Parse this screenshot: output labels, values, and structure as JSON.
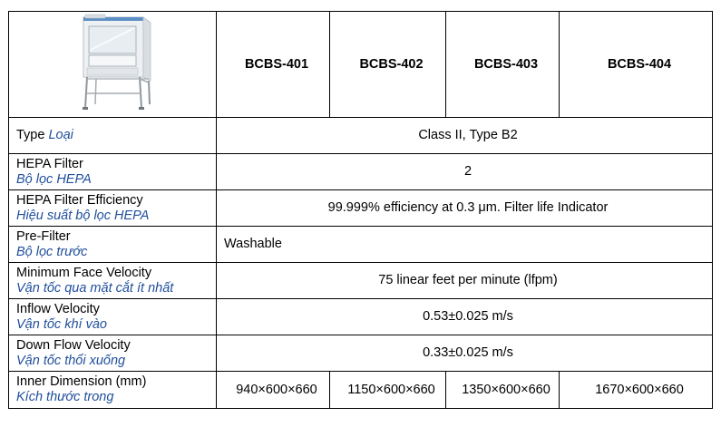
{
  "header": {
    "image_alt": "biosafety cabinet",
    "models": [
      "BCBS-401",
      "BCBS-402",
      "BCBS-403",
      "BCBS-404"
    ]
  },
  "rows": [
    {
      "en": "Type",
      "vi": "Loại",
      "value": "Class II, Type B2"
    },
    {
      "en": "HEPA Filter",
      "vi": "Bộ lọc HEPA",
      "value": "2"
    },
    {
      "en": "HEPA Filter Efficiency",
      "vi": "Hiệu suất bộ lọc HEPA",
      "value": "99.999% efficiency at 0.3 μm. Filter life Indicator"
    },
    {
      "en": "Pre-Filter",
      "vi": "Bộ lọc trước",
      "value": "Washable"
    },
    {
      "en": "Minimum Face Velocity",
      "vi": "Vận tốc qua mặt cắt ít nhất",
      "value": "75 linear feet per minute (lfpm)"
    },
    {
      "en": "Inflow Velocity",
      "vi": "Vận tốc khí vào",
      "value": "0.53±0.025 m/s"
    },
    {
      "en": "Down Flow Velocity",
      "vi": "Vận tốc thổi xuống",
      "value": "0.33±0.025 m/s"
    }
  ],
  "dimension_row": {
    "en": "Inner Dimension (mm)",
    "vi": "Kích thước trong",
    "values": [
      "940×600×660",
      "1150×600×660",
      "1350×600×660",
      "1670×600×660"
    ]
  }
}
